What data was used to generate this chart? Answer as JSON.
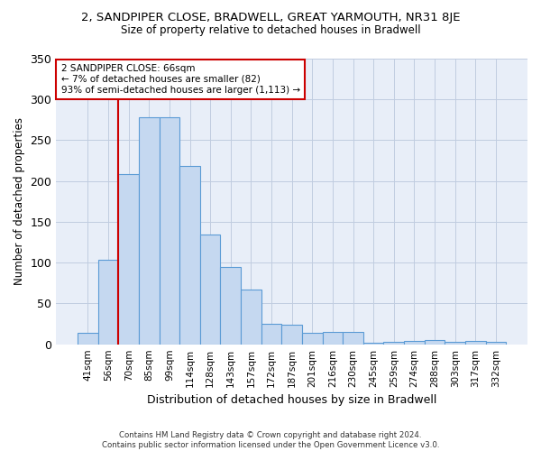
{
  "title": "2, SANDPIPER CLOSE, BRADWELL, GREAT YARMOUTH, NR31 8JE",
  "subtitle": "Size of property relative to detached houses in Bradwell",
  "xlabel": "Distribution of detached houses by size in Bradwell",
  "ylabel": "Number of detached properties",
  "bar_labels": [
    "41sqm",
    "56sqm",
    "70sqm",
    "85sqm",
    "99sqm",
    "114sqm",
    "128sqm",
    "143sqm",
    "157sqm",
    "172sqm",
    "187sqm",
    "201sqm",
    "216sqm",
    "230sqm",
    "245sqm",
    "259sqm",
    "274sqm",
    "288sqm",
    "303sqm",
    "317sqm",
    "332sqm"
  ],
  "bar_values": [
    14,
    104,
    209,
    278,
    278,
    218,
    135,
    95,
    67,
    25,
    24,
    14,
    15,
    15,
    2,
    3,
    4,
    5,
    3,
    4,
    3
  ],
  "bar_color": "#c5d8f0",
  "bar_edge_color": "#5b9bd5",
  "ylim": [
    0,
    350
  ],
  "yticks": [
    0,
    50,
    100,
    150,
    200,
    250,
    300,
    350
  ],
  "property_label": "2 SANDPIPER CLOSE: 66sqm",
  "annotation_line1": "← 7% of detached houses are smaller (82)",
  "annotation_line2": "93% of semi-detached houses are larger (1,113) →",
  "vline_color": "#cc0000",
  "footer_line1": "Contains HM Land Registry data © Crown copyright and database right 2024.",
  "footer_line2": "Contains public sector information licensed under the Open Government Licence v3.0.",
  "bg_color": "#e8eef8",
  "grid_color": "#c0cce0"
}
